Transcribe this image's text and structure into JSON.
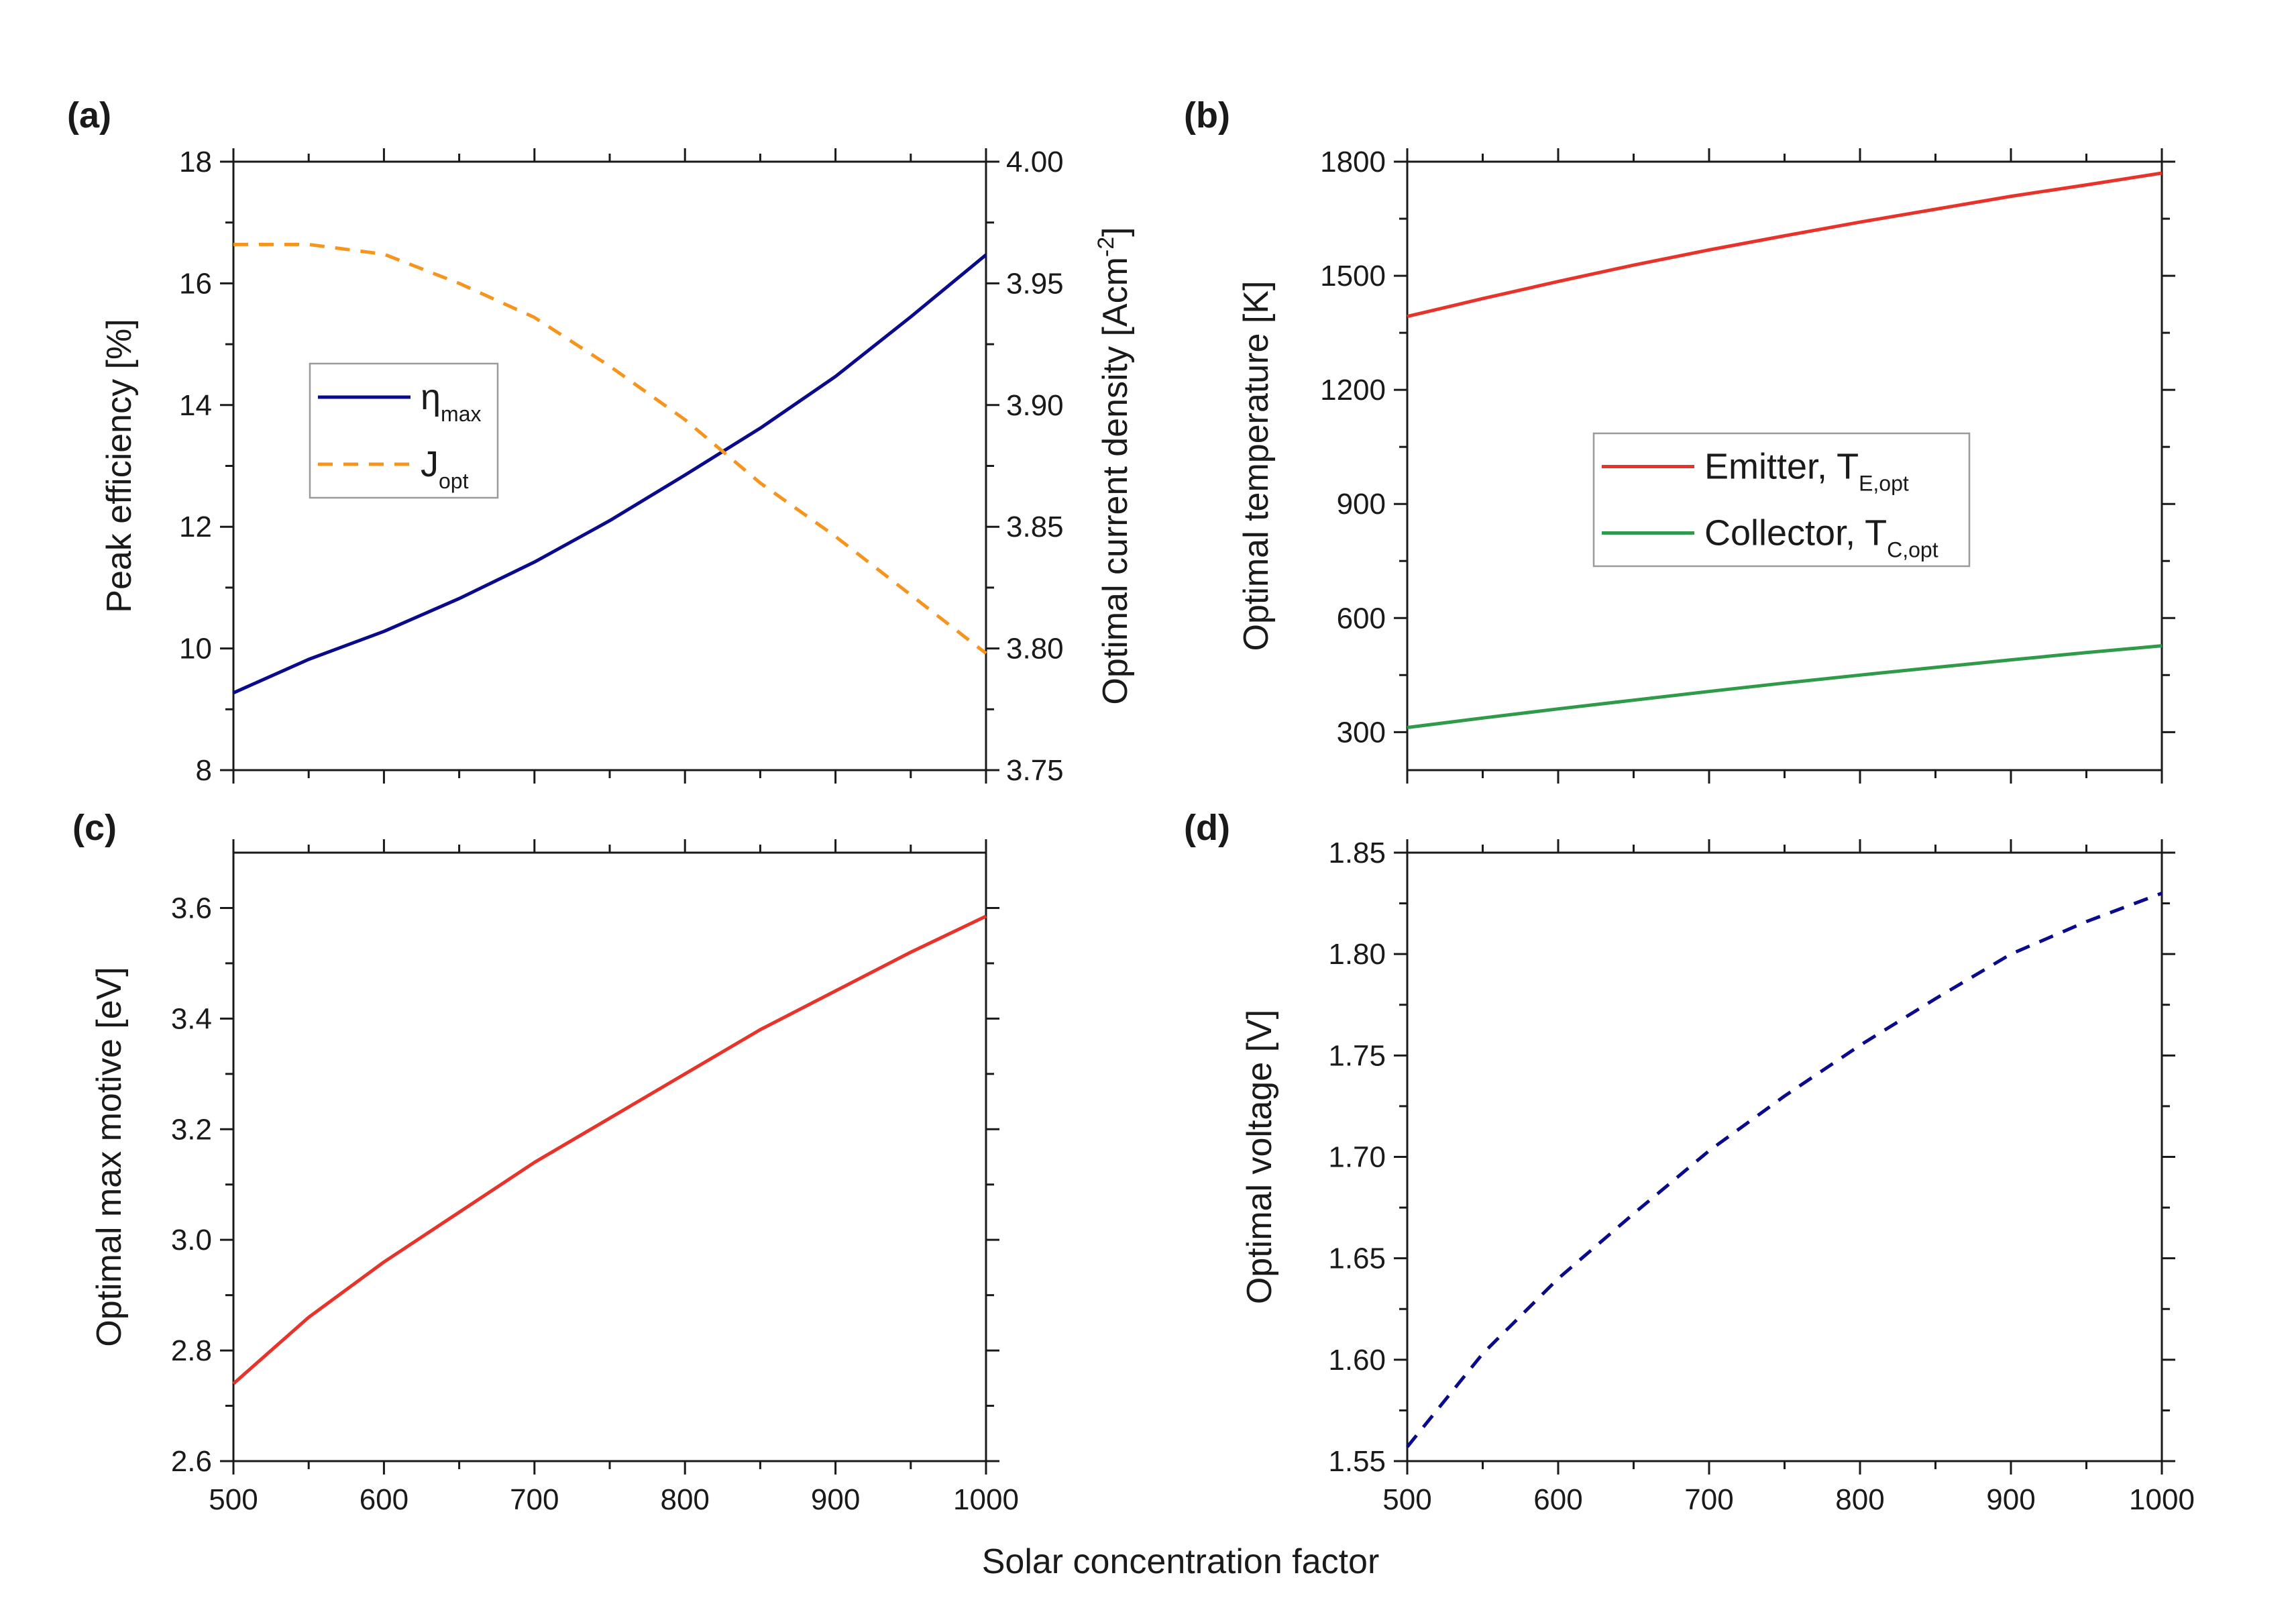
{
  "shared_xlabel": "Solar concentration factor",
  "chart_data": [
    {
      "id": "a",
      "type": "line",
      "panel_label": "(a)",
      "x": [
        500,
        550,
        600,
        650,
        700,
        750,
        800,
        850,
        900,
        950,
        1000
      ],
      "xlim": [
        500,
        1000
      ],
      "xticks": [
        500,
        600,
        700,
        800,
        900,
        1000
      ],
      "show_xticklabels": false,
      "ylabel": "Peak efficiency [%]",
      "ylim": [
        8,
        18
      ],
      "yticks": [
        8,
        10,
        12,
        14,
        16,
        18
      ],
      "y2label_main": "Optimal current density [Acm",
      "y2label_sup": "-2",
      "y2label_end": "]",
      "y2lim": [
        3.75,
        4.0
      ],
      "y2ticks": [
        "3.75",
        "3.80",
        "3.85",
        "3.90",
        "3.95",
        "4.00"
      ],
      "legend_position": "center-left",
      "series": [
        {
          "name": "eta_max",
          "legend_main": "η",
          "legend_sub": "max",
          "axis": "left",
          "color": "#0a0a8c",
          "dash": "none",
          "values": [
            9.27,
            9.82,
            10.28,
            10.82,
            11.42,
            12.1,
            12.85,
            13.62,
            14.47,
            15.45,
            16.47
          ]
        },
        {
          "name": "J_opt",
          "legend_main": "J",
          "legend_sub": "opt",
          "axis": "right",
          "color": "#f7941d",
          "dash": "22,16",
          "values": [
            3.966,
            3.966,
            3.962,
            3.95,
            3.936,
            3.916,
            3.894,
            3.868,
            3.846,
            3.822,
            3.798
          ]
        }
      ]
    },
    {
      "id": "b",
      "type": "line",
      "panel_label": "(b)",
      "x": [
        500,
        550,
        600,
        650,
        700,
        750,
        800,
        850,
        900,
        950,
        1000
      ],
      "xlim": [
        500,
        1000
      ],
      "xticks": [
        500,
        600,
        700,
        800,
        900,
        1000
      ],
      "show_xticklabels": false,
      "ylabel": "Optimal temperature [K]",
      "ylim": [
        200,
        1800
      ],
      "yticks": [
        300,
        600,
        900,
        1200,
        1500,
        1800
      ],
      "legend_position": "center",
      "series": [
        {
          "name": "Emitter",
          "legend_main": "Emitter, T",
          "legend_sub": "E,opt",
          "axis": "left",
          "color": "#e8332a",
          "dash": "none",
          "values": [
            1393,
            1440,
            1485,
            1528,
            1568,
            1605,
            1641,
            1675,
            1709,
            1739,
            1770
          ]
        },
        {
          "name": "Collector",
          "legend_main": "Collector, T",
          "legend_sub": "C,opt",
          "axis": "left",
          "color": "#2e9a4a",
          "dash": "none",
          "values": [
            312,
            337,
            361,
            384,
            407,
            429,
            450,
            470,
            490,
            509,
            527
          ]
        }
      ]
    },
    {
      "id": "c",
      "type": "line",
      "panel_label": "(c)",
      "x": [
        500,
        550,
        600,
        650,
        700,
        750,
        800,
        850,
        900,
        950,
        1000
      ],
      "xlim": [
        500,
        1000
      ],
      "xticks": [
        500,
        600,
        700,
        800,
        900,
        1000
      ],
      "xticklabels": [
        "500",
        "600",
        "700",
        "800",
        "900",
        "1000"
      ],
      "show_xticklabels": true,
      "ylabel": "Optimal max motive [eV]",
      "ylim": [
        2.6,
        3.7
      ],
      "yticks": [
        "2.6",
        "2.8",
        "3.0",
        "3.2",
        "3.4",
        "3.6"
      ],
      "series": [
        {
          "name": "max_motive",
          "axis": "left",
          "color": "#e8332a",
          "dash": "none",
          "values": [
            2.74,
            2.86,
            2.96,
            3.05,
            3.14,
            3.22,
            3.3,
            3.38,
            3.45,
            3.52,
            3.585
          ]
        }
      ]
    },
    {
      "id": "d",
      "type": "line",
      "panel_label": "(d)",
      "x": [
        500,
        550,
        600,
        650,
        700,
        750,
        800,
        850,
        900,
        950,
        1000
      ],
      "xlim": [
        500,
        1000
      ],
      "xticks": [
        500,
        600,
        700,
        800,
        900,
        1000
      ],
      "xticklabels": [
        "500",
        "600",
        "700",
        "800",
        "900",
        "1000"
      ],
      "show_xticklabels": true,
      "ylabel": "Optimal voltage [V]",
      "ylim": [
        1.55,
        1.85
      ],
      "yticks": [
        "1.55",
        "1.60",
        "1.65",
        "1.70",
        "1.75",
        "1.80",
        "1.85"
      ],
      "series": [
        {
          "name": "voltage",
          "axis": "left",
          "color": "#0a0a8c",
          "dash": "22,16",
          "values": [
            1.557,
            1.603,
            1.64,
            1.672,
            1.703,
            1.73,
            1.755,
            1.778,
            1.8,
            1.816,
            1.83
          ]
        }
      ]
    }
  ]
}
